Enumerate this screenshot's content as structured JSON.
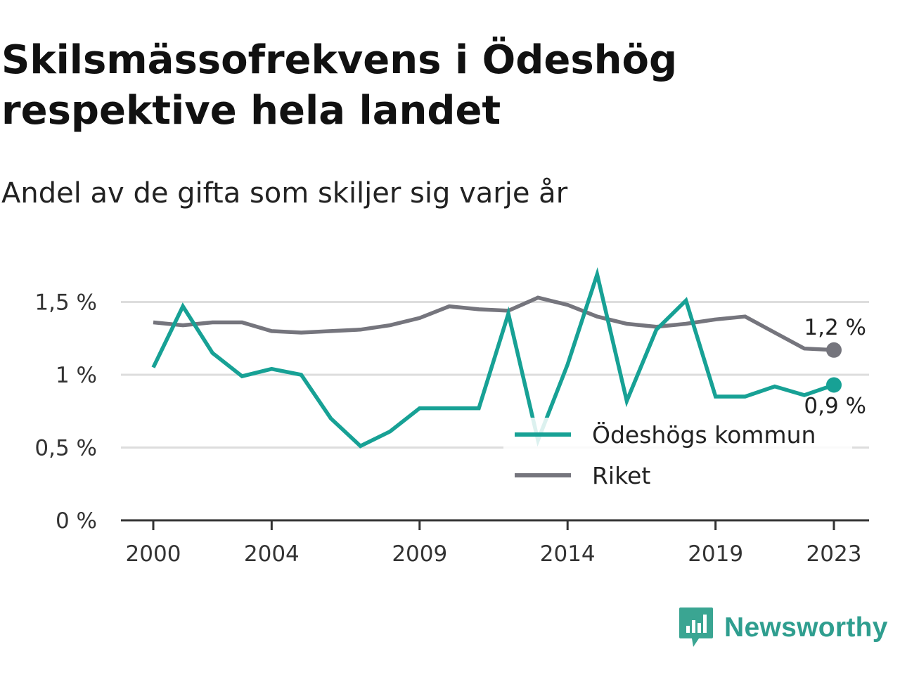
{
  "title": "Skilsmässofrekvens i Ödeshög respektive hela landet",
  "subtitle": "Andel av de gifta som skiljer sig varje år",
  "brand": "Newsworthy",
  "colors": {
    "odeshog": "#17a195",
    "riket": "#75757d",
    "grid": "#dddddd",
    "axis": "#333333",
    "brand": "#2f9e8f"
  },
  "chart_data": {
    "type": "line",
    "x_ticks": [
      "2000",
      "2004",
      "2009",
      "2014",
      "2019",
      "2023"
    ],
    "x_range": [
      2000,
      2023
    ],
    "y_ticks": [
      {
        "value": 0,
        "label": "0 %"
      },
      {
        "value": 0.5,
        "label": "0,5 %"
      },
      {
        "value": 1.0,
        "label": "1 %"
      },
      {
        "value": 1.5,
        "label": "1,5 %"
      }
    ],
    "ylim": [
      0,
      1.8
    ],
    "grid": true,
    "legend_position": "bottom-right",
    "series": [
      {
        "name": "Ödeshögs kommun",
        "color": "#17a195",
        "end_label": "0,9 %",
        "points": [
          [
            2000,
            1.05
          ],
          [
            2001,
            1.47
          ],
          [
            2002,
            1.15
          ],
          [
            2003,
            0.99
          ],
          [
            2004,
            1.04
          ],
          [
            2005,
            1.0
          ],
          [
            2006,
            0.7
          ],
          [
            2007,
            0.51
          ],
          [
            2008,
            0.61
          ],
          [
            2009,
            0.77
          ],
          [
            2010,
            0.77
          ],
          [
            2011,
            0.77
          ],
          [
            2012,
            1.42
          ],
          [
            2013,
            0.55
          ],
          [
            2014,
            1.07
          ],
          [
            2015,
            1.69
          ],
          [
            2016,
            0.82
          ],
          [
            2017,
            1.31
          ],
          [
            2018,
            1.51
          ],
          [
            2019,
            0.85
          ],
          [
            2020,
            0.85
          ],
          [
            2021,
            0.92
          ],
          [
            2022,
            0.86
          ],
          [
            2023,
            0.93
          ]
        ]
      },
      {
        "name": "Riket",
        "color": "#75757d",
        "end_label": "1,2 %",
        "points": [
          [
            2000,
            1.36
          ],
          [
            2001,
            1.34
          ],
          [
            2002,
            1.36
          ],
          [
            2003,
            1.36
          ],
          [
            2004,
            1.3
          ],
          [
            2005,
            1.29
          ],
          [
            2006,
            1.3
          ],
          [
            2007,
            1.31
          ],
          [
            2008,
            1.34
          ],
          [
            2009,
            1.39
          ],
          [
            2010,
            1.47
          ],
          [
            2011,
            1.45
          ],
          [
            2012,
            1.44
          ],
          [
            2013,
            1.53
          ],
          [
            2014,
            1.48
          ],
          [
            2015,
            1.4
          ],
          [
            2016,
            1.35
          ],
          [
            2017,
            1.33
          ],
          [
            2018,
            1.35
          ],
          [
            2019,
            1.38
          ],
          [
            2020,
            1.4
          ],
          [
            2021,
            1.29
          ],
          [
            2022,
            1.18
          ],
          [
            2023,
            1.17
          ]
        ]
      }
    ]
  }
}
